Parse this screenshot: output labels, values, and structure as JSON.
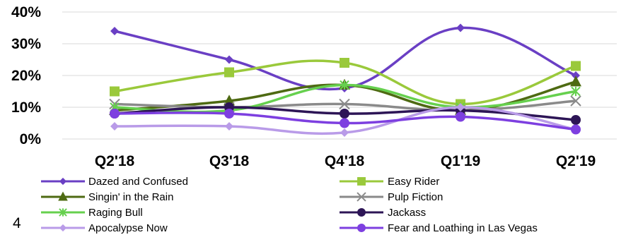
{
  "page_number": "4",
  "chart_data": {
    "type": "line",
    "categories": [
      "Q2'18",
      "Q3'18",
      "Q4'18",
      "Q1'19",
      "Q2'19"
    ],
    "ylim": [
      0,
      40
    ],
    "yticks": [
      "0%",
      "10%",
      "20%",
      "30%",
      "40%"
    ],
    "grid": true,
    "legend_position": "bottom",
    "series": [
      {
        "name": "Dazed and Confused",
        "values": [
          34,
          25,
          16,
          35,
          20
        ],
        "color": "#6a3fc4",
        "marker": "diamond"
      },
      {
        "name": "Easy Rider",
        "values": [
          15,
          21,
          24,
          11,
          23
        ],
        "color": "#9ac93b",
        "marker": "square"
      },
      {
        "name": "Singin' in the Rain",
        "values": [
          9,
          12,
          17,
          9,
          18
        ],
        "color": "#4e6a12",
        "marker": "triangle"
      },
      {
        "name": "Pulp Fiction",
        "values": [
          11,
          10,
          11,
          9,
          12
        ],
        "color": "#8a8a8a",
        "marker": "x"
      },
      {
        "name": "Raging Bull",
        "values": [
          10,
          9,
          17,
          10,
          15
        ],
        "color": "#66d04e",
        "marker": "asterisk"
      },
      {
        "name": "Jackass",
        "values": [
          8,
          10,
          8,
          9,
          6
        ],
        "color": "#2d1556",
        "marker": "circle"
      },
      {
        "name": "Apocalypse Now",
        "values": [
          4,
          4,
          2,
          10,
          3
        ],
        "color": "#b99be8",
        "marker": "diamond"
      },
      {
        "name": "Fear and Loathing in Las Vegas",
        "values": [
          8,
          8,
          5,
          7,
          3
        ],
        "color": "#7d3fe0",
        "marker": "circle"
      }
    ]
  }
}
